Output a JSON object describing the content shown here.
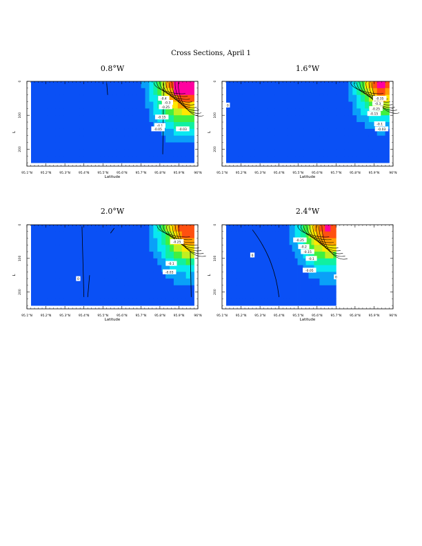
{
  "page": {
    "title": "Cross Sections, April 1"
  },
  "chart_data": [
    {
      "type": "heatmap",
      "title": "0.8°W",
      "xlabel": "Latitude",
      "ylabel": "L",
      "xlim": [
        95.1,
        96.0
      ],
      "ylim": [
        250,
        0
      ],
      "xticks": [
        "95.1°N",
        "95.2°N",
        "95.3°N",
        "95.4°N",
        "95.5°N",
        "95.6°N",
        "95.7°N",
        "95.8°N",
        "95.9°N",
        "96°N"
      ],
      "yticks": [
        "0",
        "100",
        "200"
      ],
      "data_extent": [
        95.1,
        95.98
      ],
      "contour_labels": [
        "-0.4",
        "-0.3",
        "-0.25",
        "-0.15",
        "-0.1",
        "-0.05",
        "-0.03"
      ]
    },
    {
      "type": "heatmap",
      "title": "1.6°W",
      "xlabel": "Latitude",
      "ylabel": "L",
      "xlim": [
        95.1,
        96.0
      ],
      "ylim": [
        250,
        0
      ],
      "xticks": [
        "95.1°N",
        "95.2°N",
        "95.3°N",
        "95.4°N",
        "95.5°N",
        "95.6°N",
        "95.7°N",
        "95.8°N",
        "95.9°N",
        "96°N"
      ],
      "yticks": [
        "0",
        "100",
        "200"
      ],
      "data_extent": [
        95.1,
        95.98
      ],
      "contour_labels": [
        "0",
        "-0.35",
        "-0.3",
        "-0.25",
        "-0.15",
        "-0.1",
        "-0.03"
      ]
    },
    {
      "type": "heatmap",
      "title": "2.0°W",
      "xlabel": "Latitude",
      "ylabel": "L",
      "xlim": [
        95.1,
        96.0
      ],
      "ylim": [
        250,
        0
      ],
      "xticks": [
        "95.1°N",
        "95.2°N",
        "95.3°N",
        "95.4°N",
        "95.5°N",
        "95.6°N",
        "95.7°N",
        "95.8°N",
        "95.9°N",
        "96°N"
      ],
      "yticks": [
        "0",
        "100",
        "200"
      ],
      "data_extent": [
        95.1,
        95.98
      ],
      "contour_labels": [
        "0",
        "-0.25",
        "-0.1",
        "-0.03"
      ]
    },
    {
      "type": "heatmap",
      "title": "2.4°W",
      "xlabel": "Latitude",
      "ylabel": "L",
      "xlim": [
        95.1,
        96.0
      ],
      "ylim": [
        250,
        0
      ],
      "xticks": [
        "95.1°N",
        "95.2°N",
        "95.3°N",
        "95.4°N",
        "95.5°N",
        "95.6°N",
        "95.7°N",
        "95.8°N",
        "95.9°N",
        "96°N"
      ],
      "yticks": [
        "0",
        "100",
        "200"
      ],
      "data_extent": [
        95.1,
        95.7
      ],
      "contour_labels": [
        "0",
        "-0.25",
        "-0.2",
        "-0.15",
        "-0.1",
        "-0.05",
        "0"
      ]
    }
  ],
  "colors": {
    "background_field": "#0a28f0",
    "axis": "#000000"
  }
}
